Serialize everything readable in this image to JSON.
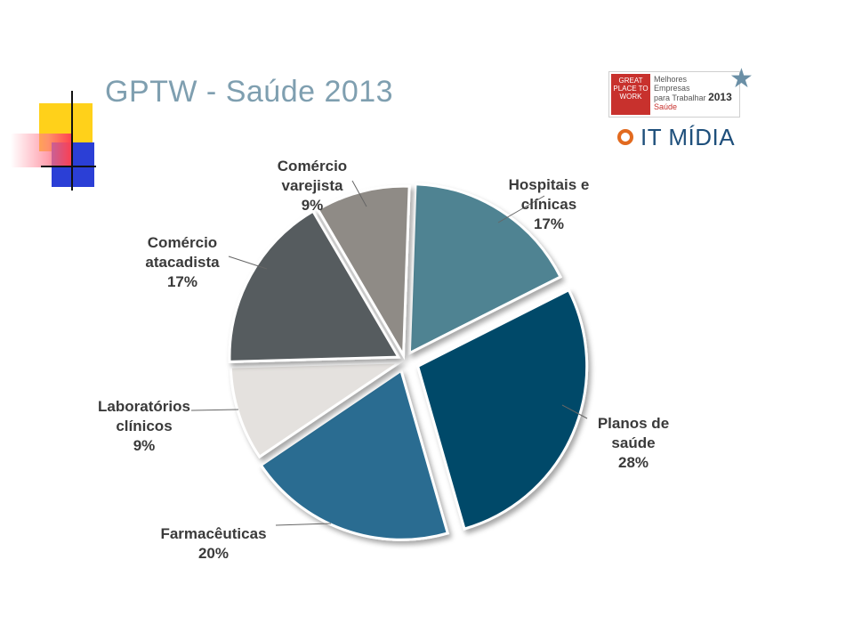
{
  "title": "GPTW - Saúde 2013",
  "logos": {
    "gptw": {
      "red_block_text": "GREAT PLACE TO WORK",
      "line1": "Melhores",
      "line2": "Empresas",
      "line3": "para Trabalhar",
      "year": "2013",
      "sub": "Saúde"
    },
    "itmidia": {
      "text": "IT MÍDIA"
    }
  },
  "colors": {
    "title": "#7f9fb0",
    "slices": [
      "#4f8392",
      "#004a69",
      "#2a6c91",
      "#e4e1de",
      "#565b5e",
      "#8f8b86"
    ]
  },
  "chart_data": {
    "type": "pie",
    "title": "GPTW - Saúde 2013",
    "slices": [
      {
        "label": "Hospitais e clínicas",
        "value": 17,
        "display": "17%"
      },
      {
        "label": "Planos de saúde",
        "value": 28,
        "display": "28%"
      },
      {
        "label": "Farmacêuticas",
        "value": 20,
        "display": "20%"
      },
      {
        "label": "Laboratórios clínicos",
        "value": 9,
        "display": "9%"
      },
      {
        "label": "Comércio atacadista",
        "value": 17,
        "display": "17%"
      },
      {
        "label": "Comércio varejista",
        "value": 9,
        "display": "9%"
      }
    ],
    "label_lines": [
      [
        "Hospitais e",
        "clínicas",
        "17%"
      ],
      [
        "Planos de",
        "saúde",
        "28%"
      ],
      [
        "Farmacêuticas",
        "20%"
      ],
      [
        "Laboratórios",
        "clínicos",
        "9%"
      ],
      [
        "Comércio",
        "atacadista",
        "17%"
      ],
      [
        "Comércio",
        "varejista",
        "9%"
      ]
    ]
  }
}
